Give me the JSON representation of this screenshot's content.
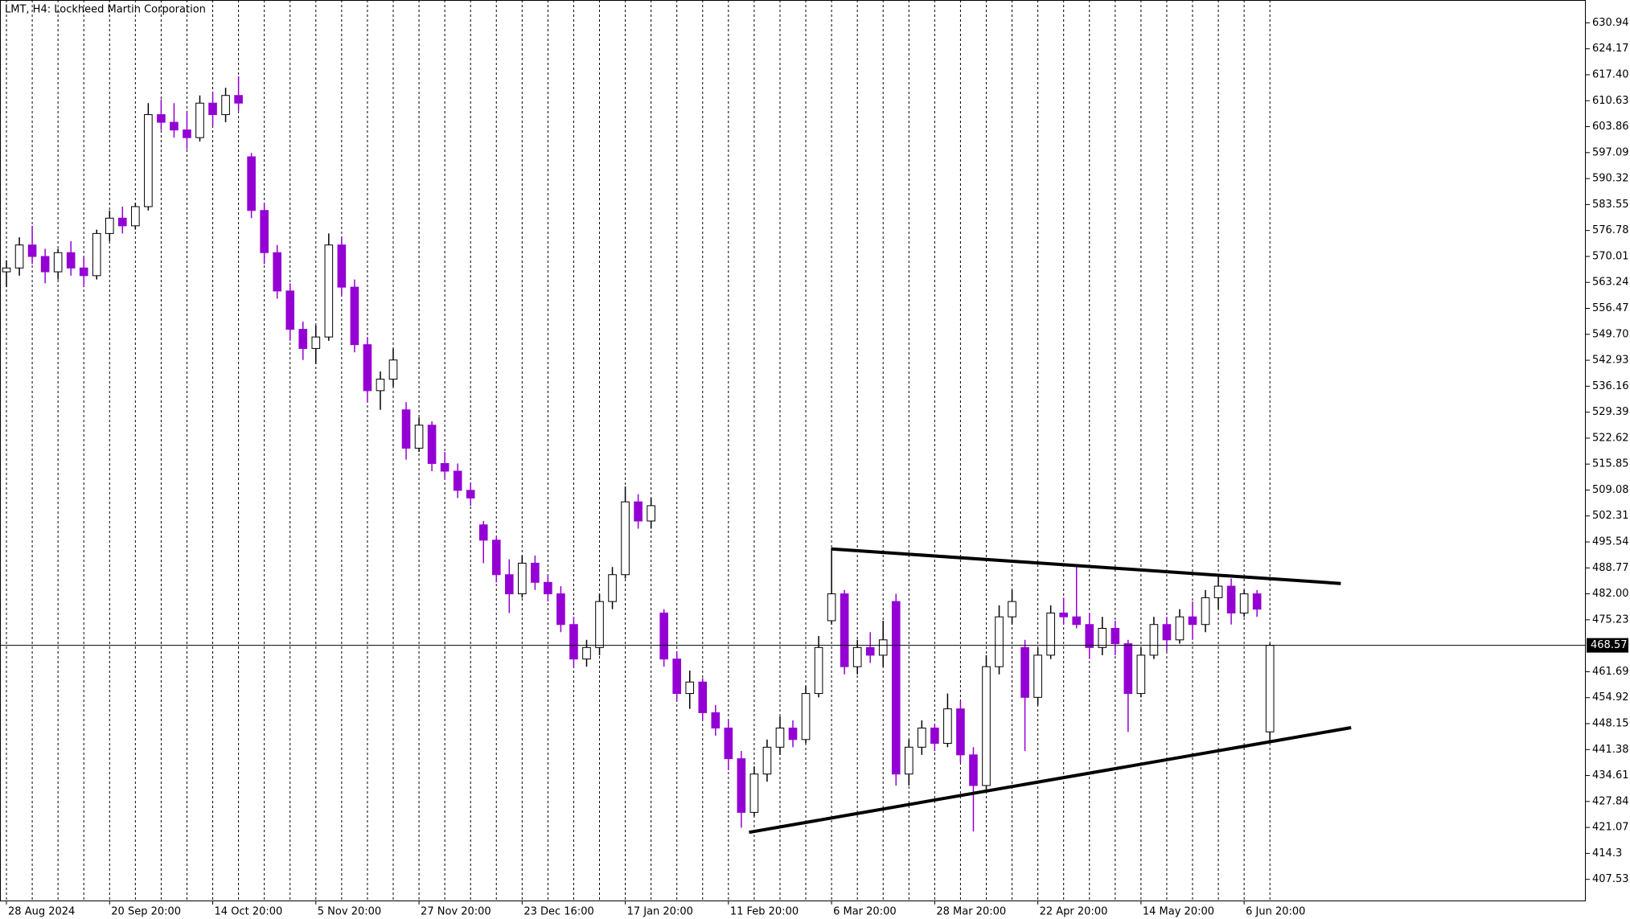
{
  "chart_data": {
    "type": "candlestick",
    "title": "LMT, H4:  Lockheed Martin Corporation",
    "categories": [
      "28 Aug 2024",
      null,
      null,
      null,
      null,
      null,
      null,
      null,
      "20 Sep 20:00",
      null,
      null,
      null,
      null,
      null,
      null,
      null,
      "14 Oct 20:00",
      null,
      null,
      null,
      null,
      null,
      null,
      null,
      "5 Nov 20:00",
      null,
      null,
      null,
      null,
      null,
      null,
      null,
      "27 Nov 20:00",
      null,
      null,
      null,
      null,
      null,
      null,
      null,
      "23 Dec 16:00",
      null,
      null,
      null,
      null,
      null,
      null,
      null,
      "17 Jan 20:00",
      null,
      null,
      null,
      null,
      null,
      null,
      null,
      "11 Feb 20:00",
      null,
      null,
      null,
      null,
      null,
      null,
      null,
      "6 Mar 20:00",
      null,
      null,
      null,
      null,
      null,
      null,
      null,
      "28 Mar 20:00",
      null,
      null,
      null,
      null,
      null,
      null,
      null,
      "22 Apr 20:00",
      null,
      null,
      null,
      null,
      null,
      null,
      null,
      "14 May 20:00",
      null,
      null,
      null,
      null,
      null,
      null,
      null,
      "6 Jun 20:00",
      null,
      null
    ],
    "ohlc": [
      [
        566,
        569,
        562,
        567
      ],
      [
        567,
        575,
        565,
        573
      ],
      [
        573,
        578,
        568,
        570
      ],
      [
        570,
        572,
        563,
        566
      ],
      [
        566,
        572,
        564,
        571
      ],
      [
        571,
        574,
        565,
        567
      ],
      [
        567,
        570,
        562,
        565
      ],
      [
        565,
        577,
        564,
        576
      ],
      [
        576,
        582,
        574,
        580
      ],
      [
        580,
        583,
        576,
        578
      ],
      [
        578,
        584,
        577,
        583
      ],
      [
        583,
        610,
        582,
        607
      ],
      [
        607,
        611,
        603,
        605
      ],
      [
        605,
        610,
        601,
        603
      ],
      [
        603,
        608,
        598,
        601
      ],
      [
        601,
        612,
        600,
        610
      ],
      [
        610,
        613,
        604,
        607
      ],
      [
        607,
        614,
        605,
        612
      ],
      [
        612,
        617,
        608,
        610
      ],
      [
        596,
        597,
        580,
        582
      ],
      [
        582,
        584,
        568,
        571
      ],
      [
        571,
        573,
        559,
        561
      ],
      [
        561,
        563,
        548,
        551
      ],
      [
        551,
        553,
        543,
        546
      ],
      [
        546,
        552,
        542,
        549
      ],
      [
        549,
        576,
        548,
        573
      ],
      [
        573,
        575,
        560,
        562
      ],
      [
        562,
        564,
        545,
        547
      ],
      [
        547,
        549,
        532,
        535
      ],
      [
        535,
        540,
        530,
        538
      ],
      [
        538,
        546,
        536,
        543
      ],
      [
        530,
        532,
        517,
        520
      ],
      [
        520,
        528,
        519,
        526
      ],
      [
        526,
        527,
        514,
        516
      ],
      [
        516,
        519,
        512,
        514
      ],
      [
        514,
        516,
        507,
        509
      ],
      [
        509,
        511,
        505,
        507
      ],
      [
        500,
        501,
        490,
        496
      ],
      [
        496,
        497,
        485,
        487
      ],
      [
        487,
        491,
        477,
        482
      ],
      [
        482,
        492,
        481,
        490
      ],
      [
        490,
        492,
        483,
        485
      ],
      [
        485,
        487,
        480,
        482
      ],
      [
        482,
        484,
        472,
        474
      ],
      [
        474,
        476,
        463,
        465
      ],
      [
        465,
        470,
        463,
        468
      ],
      [
        468,
        482,
        466,
        480
      ],
      [
        480,
        489,
        478,
        487
      ],
      [
        487,
        510,
        486,
        506
      ],
      [
        506,
        508,
        499,
        501
      ],
      [
        501,
        507,
        499,
        505
      ],
      [
        477,
        478,
        463,
        465
      ],
      [
        465,
        467,
        454,
        456
      ],
      [
        456,
        462,
        452,
        459
      ],
      [
        459,
        460,
        449,
        451
      ],
      [
        451,
        453,
        445,
        447
      ],
      [
        447,
        449,
        436,
        439
      ],
      [
        439,
        441,
        421,
        425
      ],
      [
        425,
        437,
        424,
        435
      ],
      [
        435,
        444,
        433,
        442
      ],
      [
        442,
        450,
        440,
        447
      ],
      [
        447,
        449,
        442,
        444
      ],
      [
        444,
        458,
        443,
        456
      ],
      [
        456,
        471,
        455,
        468
      ],
      [
        475,
        494,
        474,
        482
      ],
      [
        482,
        483,
        461,
        463
      ],
      [
        463,
        470,
        461,
        468
      ],
      [
        468,
        472,
        464,
        466
      ],
      [
        466,
        475,
        463,
        470
      ],
      [
        480,
        482,
        432,
        435
      ],
      [
        435,
        444,
        432,
        442
      ],
      [
        442,
        449,
        440,
        447
      ],
      [
        447,
        448,
        441,
        443
      ],
      [
        443,
        456,
        442,
        452
      ],
      [
        452,
        454,
        438,
        440
      ],
      [
        440,
        442,
        420,
        432
      ],
      [
        432,
        466,
        430,
        463
      ],
      [
        463,
        479,
        461,
        476
      ],
      [
        476,
        483,
        474,
        480
      ],
      [
        468,
        470,
        441,
        455
      ],
      [
        455,
        468,
        453,
        466
      ],
      [
        466,
        479,
        465,
        477
      ],
      [
        477,
        481,
        474,
        476
      ],
      [
        476,
        489,
        473,
        474
      ],
      [
        474,
        477,
        465,
        468
      ],
      [
        468,
        476,
        466,
        473
      ],
      [
        473,
        475,
        466,
        469
      ],
      [
        469,
        470,
        446,
        456
      ],
      [
        456,
        468,
        455,
        466
      ],
      [
        466,
        476,
        465,
        474
      ],
      [
        474,
        476,
        467,
        470
      ],
      [
        470,
        478,
        469,
        476
      ],
      [
        476,
        480,
        470,
        474
      ],
      [
        474,
        483,
        472,
        481
      ],
      [
        481,
        487,
        478,
        484
      ],
      [
        484,
        486,
        474,
        477
      ],
      [
        477,
        483,
        476,
        482
      ],
      [
        482,
        483,
        476,
        478
      ],
      [
        446,
        469,
        443,
        468.57
      ]
    ],
    "up_color": "#ffffff",
    "down_color": "#9400d3",
    "xlim": [
      -0.5,
      122.5
    ],
    "ylim": [
      401.8,
      636.9
    ],
    "yticks": [
      630.94,
      624.17,
      {
        "value": 617.4,
        "label": "617.40"
      },
      610.63,
      603.86,
      597.09,
      590.32,
      583.55,
      576.78,
      570.01,
      563.24,
      556.47,
      {
        "value": 549.7,
        "label": "549.70"
      },
      542.93,
      536.16,
      529.39,
      522.62,
      515.85,
      509.08,
      502.31,
      495.54,
      488.77,
      {
        "value": 482,
        "label": "482.00"
      },
      475.23,
      461.69,
      454.92,
      448.15,
      441.38,
      434.61,
      427.84,
      421.07,
      414.3,
      407.53
    ],
    "current_price": {
      "value": 468.57,
      "label": "468.57"
    },
    "trendlines": [
      {
        "points": [
          [
            64,
            493.7
          ],
          [
            103.5,
            484.7
          ]
        ]
      },
      {
        "points": [
          [
            57.6,
            419.8
          ],
          [
            104.3,
            447.1
          ]
        ]
      }
    ]
  }
}
